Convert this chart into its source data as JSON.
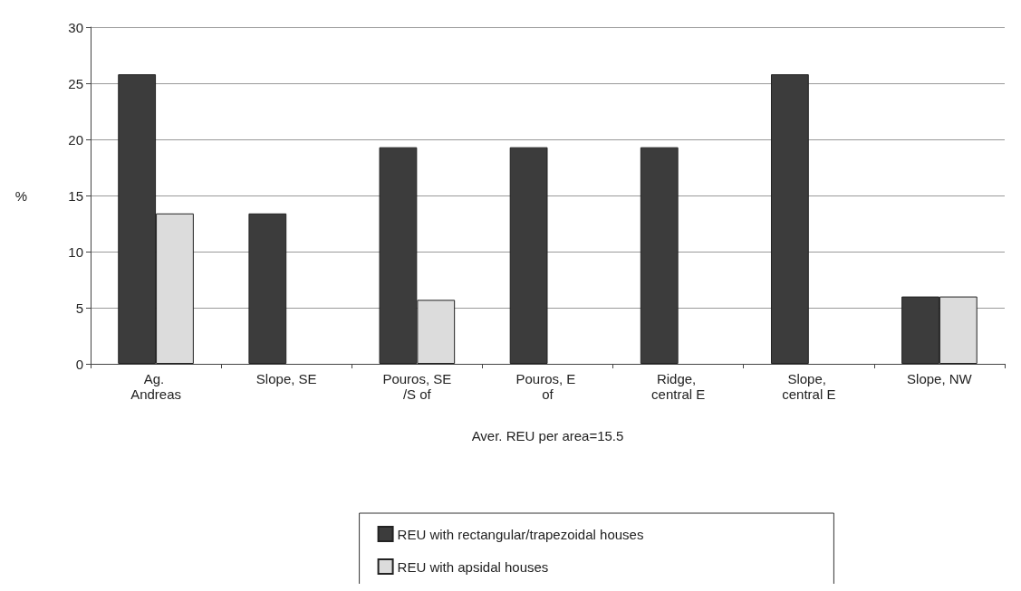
{
  "chart_data": {
    "type": "bar",
    "ylabel": "%",
    "xlabel": "Aver. REU per area=15.5",
    "categories": [
      "Ag. Andreas",
      "Slope, SE",
      "Pouros, SE/S of",
      "Pouros, E of",
      "Ridge, central E",
      "Slope, central E",
      "Slope, NW"
    ],
    "series": [
      {
        "name": "REU with rectangular/trapezoidal houses",
        "color": "#3c3c3c",
        "values": [
          25.8,
          13.4,
          19.3,
          19.3,
          19.3,
          25.8,
          6.0
        ]
      },
      {
        "name": "REU with apsidal houses",
        "color": "#dcdcdc",
        "values": [
          13.4,
          null,
          5.7,
          null,
          null,
          null,
          6.0
        ]
      }
    ],
    "ylim": [
      0,
      30
    ],
    "yticks": [
      0,
      5,
      10,
      15,
      20,
      25,
      30
    ],
    "grid": "y",
    "legend": "bottom"
  }
}
